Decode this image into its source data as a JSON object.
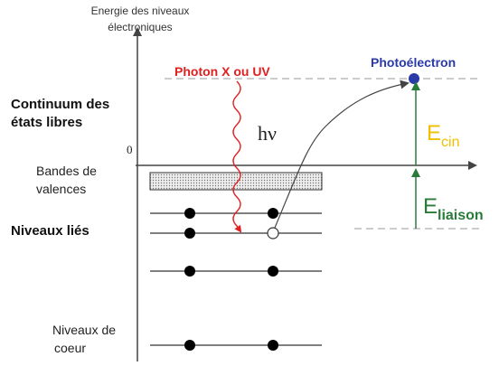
{
  "axis_label": [
    "Energie des niveaux",
    "électroniques"
  ],
  "photon_label": "Photon X ou UV",
  "photoelectron_label": "Photoélectron",
  "continuum_label": [
    "Continuum des",
    "états libres"
  ],
  "energy_symbol": "hν",
  "zero_label": "0",
  "kinetic_energy": {
    "main": "E",
    "sub": "cin"
  },
  "valence_label": [
    "Bandes de",
    "valences"
  ],
  "binding_energy": {
    "main": "E",
    "sub": "liaison"
  },
  "bound_label": "Niveaux liés",
  "core_label": [
    "Niveaux de",
    "coeur"
  ]
}
